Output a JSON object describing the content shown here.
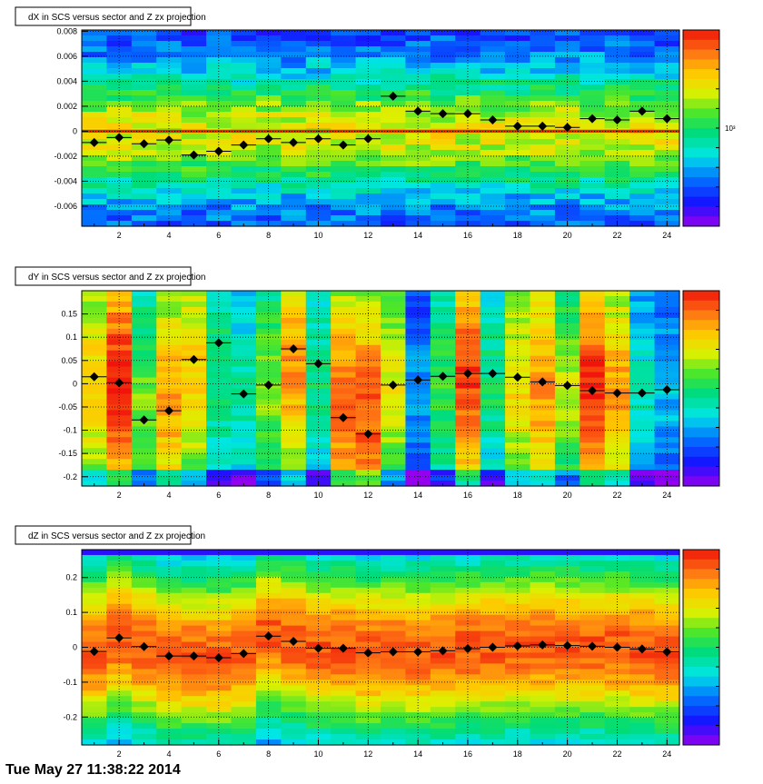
{
  "footer": {
    "text": "Tue May 27 11:38:22 2014"
  },
  "chart_data": [
    {
      "type": "heatmap",
      "title": "dX in SCS versus sector and Z zx projection",
      "x": [
        1,
        2,
        3,
        4,
        5,
        6,
        7,
        8,
        9,
        10,
        11,
        12,
        13,
        14,
        15,
        16,
        17,
        18,
        19,
        20,
        21,
        22,
        23,
        24
      ],
      "xlim": [
        0.5,
        24.5
      ],
      "ylim": [
        -0.0076,
        0.0081
      ],
      "xticks": [
        2,
        4,
        6,
        8,
        10,
        12,
        14,
        16,
        18,
        20,
        22,
        24
      ],
      "yticks": [
        {
          "v": 0.008,
          "label": "0.008"
        },
        {
          "v": 0.006,
          "label": "0.006"
        },
        {
          "v": 0.004,
          "label": "0.004"
        },
        {
          "v": 0.002,
          "label": "0.002"
        },
        {
          "v": 0,
          "label": "0"
        },
        {
          "v": -0.002,
          "label": "-0.002"
        },
        {
          "v": -0.004,
          "label": "-0.004"
        },
        {
          "v": -0.006,
          "label": "-0.006"
        }
      ],
      "colorbar_label": "10³",
      "grid": true,
      "series": [
        {
          "values": [
            -0.0009,
            -0.0005,
            -0.001,
            -0.0007,
            -0.0019,
            -0.0016,
            -0.0011,
            -0.0006,
            -0.0009,
            -0.0006,
            -0.0011,
            -0.0006,
            0.0028,
            0.0016,
            0.0014,
            0.0014,
            0.0009,
            0.0004,
            0.0004,
            0.0003,
            0.001,
            0.0009,
            0.0016,
            0.001
          ]
        }
      ]
    },
    {
      "type": "heatmap",
      "title": "dY in SCS versus sector and Z zx projection",
      "x": [
        1,
        2,
        3,
        4,
        5,
        6,
        7,
        8,
        9,
        10,
        11,
        12,
        13,
        14,
        15,
        16,
        17,
        18,
        19,
        20,
        21,
        22,
        23,
        24
      ],
      "xlim": [
        0.5,
        24.5
      ],
      "ylim": [
        -0.22,
        0.2
      ],
      "xticks": [
        2,
        4,
        6,
        8,
        10,
        12,
        14,
        16,
        18,
        20,
        22,
        24
      ],
      "yticks": [
        {
          "v": 0.15,
          "label": "0.15"
        },
        {
          "v": 0.1,
          "label": "0.1"
        },
        {
          "v": 0.05,
          "label": "0.05"
        },
        {
          "v": 0,
          "label": "0"
        },
        {
          "v": -0.05,
          "label": "-0.05"
        },
        {
          "v": -0.1,
          "label": "-0.1"
        },
        {
          "v": -0.15,
          "label": "-0.15"
        },
        {
          "v": -0.2,
          "label": "-0.2"
        }
      ],
      "colorbar_label": "",
      "grid": true,
      "series": [
        {
          "values": [
            0.015,
            0.002,
            -0.078,
            -0.058,
            0.052,
            0.088,
            -0.022,
            -0.003,
            0.075,
            0.043,
            -0.073,
            -0.108,
            -0.003,
            0.008,
            0.016,
            0.022,
            0.022,
            0.014,
            0.004,
            -0.004,
            -0.015,
            -0.02,
            -0.02,
            -0.013
          ]
        }
      ]
    },
    {
      "type": "heatmap",
      "title": "dZ in SCS versus sector and Z zx projection",
      "x": [
        1,
        2,
        3,
        4,
        5,
        6,
        7,
        8,
        9,
        10,
        11,
        12,
        13,
        14,
        15,
        16,
        17,
        18,
        19,
        20,
        21,
        22,
        23,
        24
      ],
      "xlim": [
        0.5,
        24.5
      ],
      "ylim": [
        -0.28,
        0.28
      ],
      "xticks": [
        2,
        4,
        6,
        8,
        10,
        12,
        14,
        16,
        18,
        20,
        22,
        24
      ],
      "yticks": [
        {
          "v": 0.2,
          "label": "0.2"
        },
        {
          "v": 0.1,
          "label": "0.1"
        },
        {
          "v": 0,
          "label": "0"
        },
        {
          "v": -0.1,
          "label": "-0.1"
        },
        {
          "v": -0.2,
          "label": "-0.2"
        }
      ],
      "colorbar_label": "",
      "grid": true,
      "series": [
        {
          "values": [
            -0.012,
            0.027,
            0.002,
            -0.025,
            -0.025,
            -0.03,
            -0.018,
            0.032,
            0.017,
            -0.003,
            -0.003,
            -0.016,
            -0.013,
            -0.013,
            -0.01,
            -0.004,
            0.0,
            0.004,
            0.007,
            0.005,
            0.003,
            0.0,
            -0.005,
            -0.013
          ]
        }
      ]
    }
  ]
}
